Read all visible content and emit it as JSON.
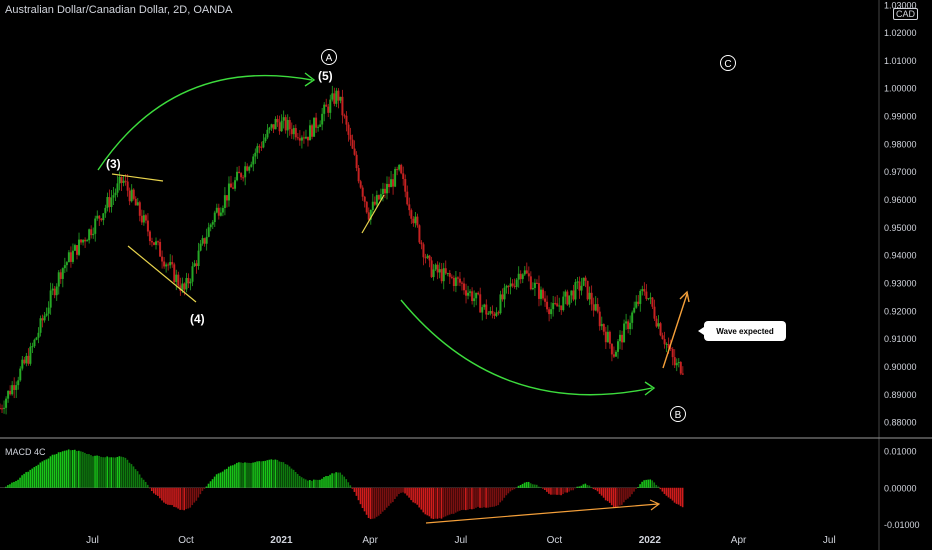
{
  "header": {
    "title": "Australian Dollar/Canadian Dollar, 2D, OANDA",
    "currency": "CAD"
  },
  "indicator": {
    "label": "MACD 4C"
  },
  "callout": {
    "text": "Wave expected"
  },
  "colors": {
    "background": "#000000",
    "up": "#26a826",
    "down": "#c62222",
    "green_annotation": "#3ddc3d",
    "yellow_annotation": "#e8d44d",
    "orange_annotation": "#f5a03a",
    "axis_text": "#d1d4dc"
  },
  "chart_data": [
    {
      "type": "candlestick",
      "title": "Australian Dollar/Canadian Dollar, 2D, OANDA",
      "unit": "CAD",
      "x_tick_labels": [
        "Jul",
        "Oct",
        "2021",
        "Apr",
        "Jul",
        "Oct",
        "2022",
        "Apr",
        "Jul"
      ],
      "y_tick_labels": [
        "1.03000",
        "1.02000",
        "1.01000",
        "1.00000",
        "0.99000",
        "0.98000",
        "0.97000",
        "0.96000",
        "0.95000",
        "0.94000",
        "0.93000",
        "0.92000",
        "0.91000",
        "0.90000",
        "0.89000",
        "0.88000"
      ],
      "ylim": [
        0.875,
        1.031
      ],
      "grid": false,
      "price_path_approx": [
        [
          "2020-04",
          0.885
        ],
        [
          "2020-05",
          0.905
        ],
        [
          "2020-06",
          0.935
        ],
        [
          "2020-07",
          0.95
        ],
        [
          "2020-08",
          0.967
        ],
        [
          "2020-09",
          0.945
        ],
        [
          "2020-10",
          0.927
        ],
        [
          "2020-11",
          0.955
        ],
        [
          "2020-12",
          0.972
        ],
        [
          "2021-01",
          0.988
        ],
        [
          "2021-02",
          0.983
        ],
        [
          "2021-03",
          0.998
        ],
        [
          "2021-04",
          0.955
        ],
        [
          "2021-05",
          0.97
        ],
        [
          "2021-06",
          0.935
        ],
        [
          "2021-07",
          0.93
        ],
        [
          "2021-08",
          0.918
        ],
        [
          "2021-09",
          0.935
        ],
        [
          "2021-10",
          0.92
        ],
        [
          "2021-11",
          0.93
        ],
        [
          "2021-12",
          0.905
        ],
        [
          "2022-01",
          0.928
        ],
        [
          "2022-02",
          0.9
        ]
      ],
      "annotations": [
        {
          "text": "(3)",
          "near": "0.967 peak, Aug 2020"
        },
        {
          "text": "(4)",
          "near": "0.925 low, Oct 2020"
        },
        {
          "text": "(5)",
          "near": "0.998 peak, Mar 2021"
        },
        {
          "text": "A",
          "style": "circled"
        },
        {
          "text": "B",
          "style": "circled"
        },
        {
          "text": "C",
          "style": "circled"
        },
        {
          "text": "Wave expected",
          "style": "callout"
        }
      ]
    },
    {
      "type": "bar",
      "title": "MACD 4C",
      "y_tick_labels": [
        "0.01000",
        "0.00000",
        "-0.01000"
      ],
      "ylim": [
        -0.0115,
        0.013
      ],
      "x_tick_labels": [
        "Jul",
        "Oct",
        "2021",
        "Apr",
        "Jul",
        "Oct",
        "2022",
        "Apr",
        "Jul"
      ]
    }
  ]
}
